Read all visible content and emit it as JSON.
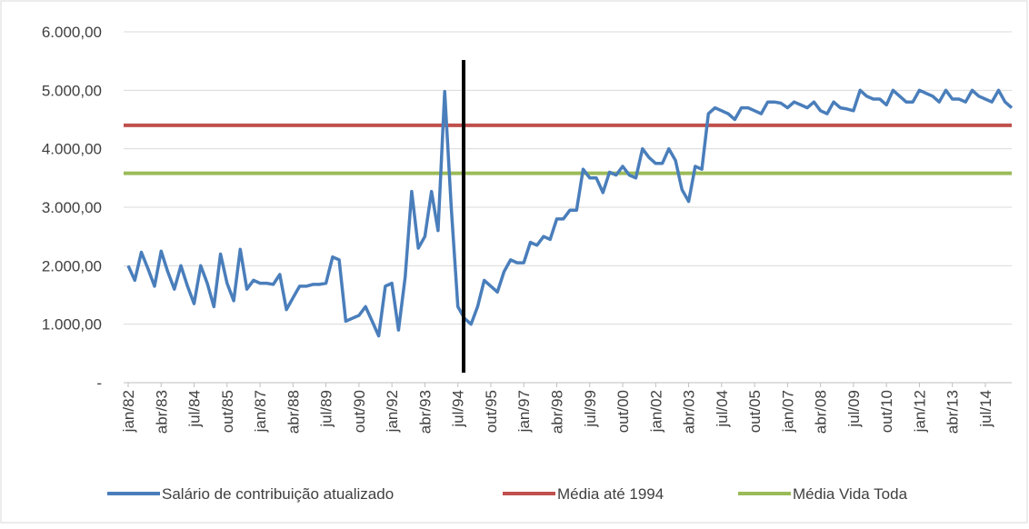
{
  "chart_data": {
    "type": "line",
    "categories": [
      "jan/82",
      null,
      null,
      null,
      null,
      "abr/83",
      null,
      null,
      null,
      null,
      "jul/84",
      null,
      null,
      null,
      null,
      "out/85",
      null,
      null,
      null,
      null,
      "jan/87",
      null,
      null,
      null,
      null,
      "abr/88",
      null,
      null,
      null,
      null,
      "jul/89",
      null,
      null,
      null,
      null,
      "out/90",
      null,
      null,
      null,
      null,
      "jan/92",
      null,
      null,
      null,
      null,
      "abr/93",
      null,
      null,
      null,
      null,
      "jul/94",
      null,
      null,
      null,
      null,
      "out/95",
      null,
      null,
      null,
      null,
      "jan/97",
      null,
      null,
      null,
      null,
      "abr/98",
      null,
      null,
      null,
      null,
      "jul/99",
      null,
      null,
      null,
      null,
      "out/00",
      null,
      null,
      null,
      null,
      "jan/02",
      null,
      null,
      null,
      null,
      "abr/03",
      null,
      null,
      null,
      null,
      "jul/04",
      null,
      null,
      null,
      null,
      "out/05",
      null,
      null,
      null,
      null,
      "jan/07",
      null,
      null,
      null,
      null,
      "abr/08",
      null,
      null,
      null,
      null,
      "jul/09",
      null,
      null,
      null,
      null,
      "out/10",
      null,
      null,
      null,
      null,
      "jan/12",
      null,
      null,
      null,
      null,
      "abr/13",
      null,
      null,
      null,
      null,
      "jul/14",
      null,
      null,
      null,
      null
    ],
    "series": [
      {
        "name": "Salário de contribuição atualizado",
        "color": "#4a7ebb",
        "values": [
          2000,
          1750,
          2230,
          1950,
          1650,
          2250,
          1900,
          1600,
          2000,
          1650,
          1350,
          2000,
          1700,
          1300,
          2200,
          1700,
          1400,
          2280,
          1600,
          1750,
          1700,
          1700,
          1680,
          1850,
          1250,
          1450,
          1650,
          1650,
          1680,
          1680,
          1700,
          2150,
          2100,
          1050,
          1100,
          1150,
          1300,
          1050,
          800,
          1650,
          1700,
          900,
          1800,
          3270,
          2300,
          2500,
          3270,
          2600,
          4980,
          3000,
          1300,
          1100,
          1000,
          1300,
          1750,
          1650,
          1550,
          1900,
          2100,
          2050,
          2050,
          2400,
          2350,
          2500,
          2450,
          2800,
          2800,
          2950,
          2950,
          3650,
          3500,
          3500,
          3250,
          3600,
          3550,
          3700,
          3550,
          3500,
          4000,
          3850,
          3750,
          3750,
          4000,
          3800,
          3300,
          3100,
          3700,
          3650,
          4600,
          4700,
          4650,
          4600,
          4500,
          4700,
          4700,
          4650,
          4600,
          4800,
          4800,
          4780,
          4700,
          4800,
          4750,
          4700,
          4800,
          4650,
          4600,
          4800,
          4700,
          4680,
          4650,
          5000,
          4900,
          4850,
          4850,
          4750,
          5000,
          4900,
          4800,
          4800,
          5000,
          4950,
          4900,
          4800,
          5000,
          4850,
          4850,
          4800,
          5000,
          4900,
          4850,
          4800,
          5000,
          4800,
          4700
        ]
      }
    ],
    "reference_lines": [
      {
        "name": "Média até 1994",
        "color": "#c0504d",
        "value": 4400
      },
      {
        "name": "Média Vida Toda",
        "color": "#9bbb59",
        "value": 3580
      }
    ],
    "ylim": [
      0,
      6000
    ],
    "yticks": [
      {
        "value": 0,
        "label": "-"
      },
      {
        "value": 1000,
        "label": "1.000,00"
      },
      {
        "value": 2000,
        "label": "2.000,00"
      },
      {
        "value": 3000,
        "label": "3.000,00"
      },
      {
        "value": 4000,
        "label": "4.000,00"
      },
      {
        "value": 5000,
        "label": "5.000,00"
      },
      {
        "value": 6000,
        "label": "6.000,00"
      }
    ],
    "grid": true
  }
}
